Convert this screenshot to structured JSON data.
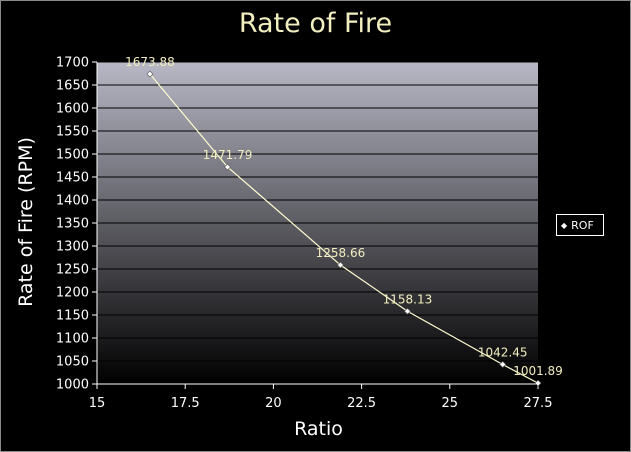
{
  "chart_data": {
    "type": "line",
    "title": "Rate of Fire",
    "xlabel": "Ratio",
    "ylabel": "Rate of Fire (RPM)",
    "xlim": [
      15,
      27.5
    ],
    "ylim": [
      1000,
      1700
    ],
    "x_ticks": [
      "15",
      "17.5",
      "20",
      "22.5",
      "25",
      "27.5"
    ],
    "y_ticks": [
      "1000",
      "1050",
      "1100",
      "1150",
      "1200",
      "1250",
      "1300",
      "1350",
      "1400",
      "1450",
      "1500",
      "1550",
      "1600",
      "1650",
      "1700"
    ],
    "grid": true,
    "legend_position": "right",
    "series": [
      {
        "name": "ROF",
        "x": [
          16.5,
          18.7,
          21.9,
          23.8,
          26.5,
          27.5
        ],
        "values": [
          1673.88,
          1471.79,
          1258.66,
          1158.13,
          1042.45,
          1001.89
        ],
        "labels": [
          "1673.88",
          "1471.79",
          "1258.66",
          "1158.13",
          "1042.45",
          "1001.89"
        ]
      }
    ],
    "colors": {
      "line": "#fffbd0",
      "label": "#f2eec0",
      "title": "#f2eec0",
      "plot_top": "#b8b8c6",
      "plot_bottom": "#000000"
    }
  }
}
